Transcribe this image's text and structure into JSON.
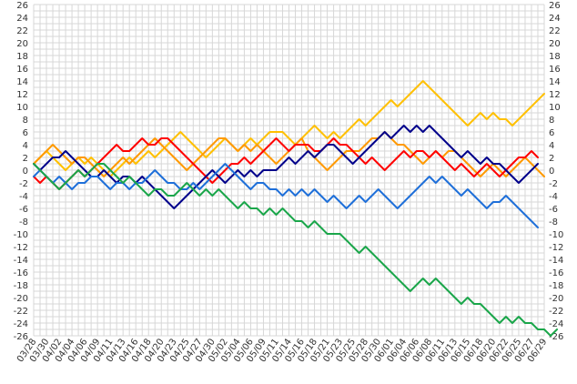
{
  "chart_data": {
    "type": "line",
    "title": "",
    "xlabel": "",
    "ylabel": "",
    "ylim": [
      -26,
      26
    ],
    "y_ticks": [
      26,
      24,
      22,
      20,
      18,
      16,
      14,
      12,
      10,
      8,
      6,
      4,
      2,
      0,
      -2,
      -4,
      -6,
      -8,
      -10,
      -12,
      -14,
      -16,
      -18,
      -20,
      -22,
      -24,
      -26
    ],
    "y_tick_labels": [
      "26",
      "24",
      "22",
      "20",
      "18",
      "16",
      "14",
      "12",
      "10",
      "8",
      "6",
      "4",
      "2",
      "0",
      "-2",
      "-4",
      "-6",
      "-8",
      "-10",
      "-12",
      "-14",
      "-16",
      "-18",
      "-20",
      "-22",
      "-24",
      "-26"
    ],
    "grid": true,
    "legend": "none",
    "x_tick_labels": [
      "03/28",
      "03/30",
      "04/02",
      "04/04",
      "04/06",
      "04/09",
      "04/11",
      "04/13",
      "04/16",
      "04/18",
      "04/20",
      "04/23",
      "04/25",
      "04/27",
      "04/30",
      "05/02",
      "05/04",
      "05/06",
      "05/09",
      "05/11",
      "05/14",
      "05/16",
      "05/18",
      "05/21",
      "05/23",
      "05/25",
      "05/28",
      "05/30",
      "06/01",
      "06/04",
      "06/06",
      "06/08",
      "06/11",
      "06/13",
      "06/15",
      "06/18",
      "06/20",
      "06/22",
      "06/25",
      "06/27",
      "06/29"
    ],
    "series": [
      {
        "color": "#ffc000",
        "values": [
          1,
          2,
          3,
          2,
          1,
          0,
          1,
          2,
          1,
          2,
          1,
          0,
          -1,
          0,
          1,
          2,
          1,
          2,
          3,
          2,
          3,
          4,
          5,
          6,
          5,
          4,
          3,
          2,
          3,
          4,
          5,
          4,
          3,
          4,
          5,
          4,
          5,
          6,
          6,
          6,
          5,
          4,
          5,
          6,
          7,
          6,
          5,
          6,
          5,
          6,
          7,
          8,
          7,
          8,
          9,
          10,
          11,
          10,
          11,
          12,
          13,
          14,
          13,
          12,
          11,
          10,
          9,
          8,
          7,
          8,
          9,
          8,
          9,
          8,
          8,
          7,
          8,
          9,
          10,
          11,
          12
        ]
      },
      {
        "color": "#ff9900",
        "values": [
          1,
          2,
          3,
          4,
          3,
          2,
          1,
          2,
          2,
          1,
          0,
          -1,
          0,
          1,
          2,
          1,
          2,
          3,
          4,
          5,
          4,
          3,
          2,
          1,
          0,
          1,
          2,
          3,
          4,
          5,
          5,
          4,
          3,
          4,
          3,
          4,
          3,
          2,
          1,
          2,
          3,
          4,
          5,
          3,
          2,
          1,
          0,
          1,
          2,
          3,
          3,
          3,
          4,
          5,
          5,
          6,
          5,
          4,
          4,
          3,
          2,
          1,
          2,
          3,
          2,
          3,
          3,
          2,
          1,
          0,
          -1,
          0,
          1,
          0,
          -1,
          0,
          1,
          2,
          1,
          0,
          -1
        ]
      },
      {
        "color": "#ff0000",
        "values": [
          -1,
          -2,
          -1,
          -2,
          -3,
          -2,
          -1,
          0,
          -1,
          0,
          1,
          2,
          3,
          4,
          3,
          3,
          4,
          5,
          4,
          4,
          5,
          5,
          4,
          3,
          2,
          1,
          0,
          -1,
          -2,
          -1,
          0,
          1,
          1,
          2,
          1,
          2,
          3,
          4,
          5,
          4,
          3,
          4,
          4,
          4,
          3,
          3,
          4,
          5,
          4,
          4,
          3,
          2,
          1,
          2,
          1,
          0,
          1,
          2,
          3,
          2,
          3,
          3,
          2,
          3,
          2,
          1,
          0,
          1,
          0,
          -1,
          0,
          1,
          0,
          -1,
          0,
          1,
          2,
          2,
          3,
          2
        ]
      },
      {
        "color": "#00008b",
        "values": [
          1,
          0,
          1,
          2,
          2,
          3,
          2,
          1,
          0,
          -1,
          -1,
          0,
          -1,
          -2,
          -1,
          -1,
          -2,
          -1,
          -2,
          -3,
          -4,
          -5,
          -6,
          -5,
          -4,
          -3,
          -2,
          -1,
          0,
          -1,
          -2,
          -1,
          0,
          -1,
          0,
          -1,
          0,
          0,
          0,
          1,
          2,
          1,
          2,
          3,
          2,
          3,
          4,
          4,
          3,
          2,
          1,
          2,
          3,
          4,
          5,
          6,
          5,
          6,
          7,
          6,
          7,
          6,
          7,
          6,
          5,
          4,
          3,
          2,
          3,
          2,
          1,
          2,
          1,
          1,
          0,
          -1,
          -2,
          -1,
          0,
          1
        ]
      },
      {
        "color": "#1e6fd9",
        "values": [
          -1,
          0,
          -1,
          -2,
          -1,
          -2,
          -3,
          -2,
          -2,
          -1,
          -1,
          -2,
          -3,
          -2,
          -2,
          -3,
          -2,
          -2,
          -1,
          0,
          -1,
          -2,
          -2,
          -3,
          -3,
          -2,
          -3,
          -2,
          -1,
          0,
          1,
          0,
          -1,
          -2,
          -3,
          -2,
          -2,
          -3,
          -3,
          -4,
          -3,
          -4,
          -3,
          -4,
          -3,
          -4,
          -5,
          -4,
          -5,
          -6,
          -5,
          -4,
          -5,
          -4,
          -3,
          -4,
          -5,
          -6,
          -5,
          -4,
          -3,
          -2,
          -1,
          -2,
          -1,
          -2,
          -3,
          -4,
          -3,
          -4,
          -5,
          -6,
          -5,
          -5,
          -4,
          -5,
          -6,
          -7,
          -8,
          -9
        ]
      },
      {
        "color": "#1aa64a",
        "values": [
          1,
          0,
          -1,
          -2,
          -3,
          -2,
          -1,
          0,
          -1,
          0,
          1,
          1,
          0,
          -1,
          -2,
          -1,
          -2,
          -3,
          -4,
          -3,
          -3,
          -4,
          -4,
          -3,
          -2,
          -3,
          -4,
          -3,
          -4,
          -3,
          -4,
          -5,
          -6,
          -5,
          -6,
          -6,
          -7,
          -6,
          -7,
          -6,
          -7,
          -8,
          -8,
          -9,
          -8,
          -9,
          -10,
          -10,
          -10,
          -11,
          -12,
          -13,
          -12,
          -13,
          -14,
          -15,
          -16,
          -17,
          -18,
          -19,
          -18,
          -17,
          -18,
          -17,
          -18,
          -19,
          -20,
          -21,
          -20,
          -21,
          -21,
          -22,
          -23,
          -24,
          -23,
          -24,
          -23,
          -24,
          -24,
          -25,
          -25,
          -26,
          -25
        ]
      }
    ]
  }
}
